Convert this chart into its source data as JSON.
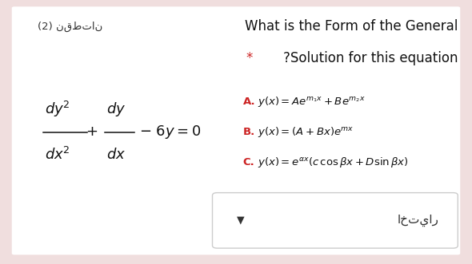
{
  "bg_color": "#f0dede",
  "panel_color": "#ffffff",
  "title_line1": "What is the Form of the General",
  "title_line2": "* ?Solution for this equation",
  "header_left": "(2) نقطتان",
  "label_color": "#cc2222",
  "text_color": "#333333",
  "eq_color": "#111111",
  "title_color": "#111111",
  "dropdown_text": "اختيار",
  "star_color": "#cc2222",
  "figw": 5.9,
  "figh": 3.31,
  "dpi": 100
}
